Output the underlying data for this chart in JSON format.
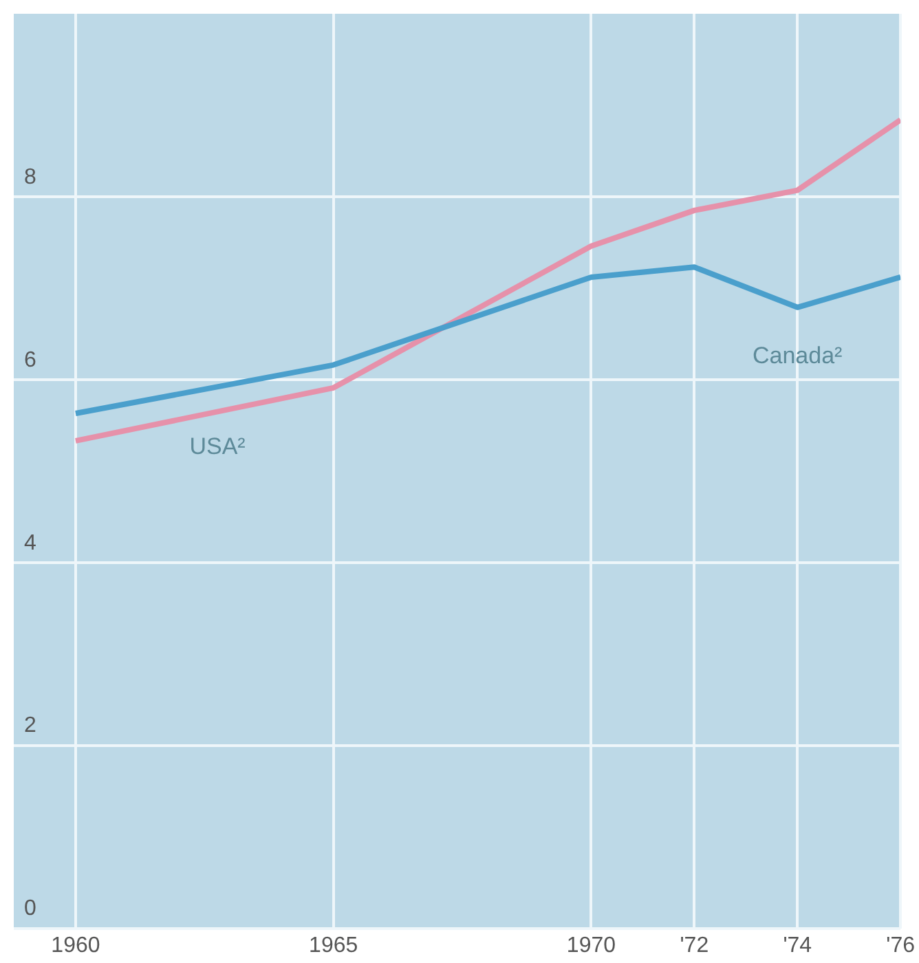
{
  "chart_data": {
    "type": "line",
    "x": [
      1960,
      1965,
      1970,
      1972,
      1974,
      1976
    ],
    "series": [
      {
        "name": "Canada²",
        "color": "#4a9fcc",
        "values": [
          5.63,
          6.16,
          7.12,
          7.23,
          6.79,
          7.12
        ]
      },
      {
        "name": "USA²",
        "color": "#e691aa",
        "values": [
          5.33,
          5.91,
          7.46,
          7.85,
          8.07,
          8.84
        ]
      }
    ],
    "xlim": [
      1958.8,
      1976
    ],
    "xticks": [
      1960,
      1965,
      1970,
      {
        "value": 1972,
        "label": "'72"
      },
      {
        "value": 1974,
        "label": "'74"
      },
      {
        "value": 1976,
        "label": "'76"
      }
    ],
    "ylim": [
      0,
      10
    ],
    "yticks": [
      0,
      2,
      4,
      6,
      8
    ],
    "grid": true,
    "legend": false,
    "marker": "none",
    "line_style": "solid"
  }
}
